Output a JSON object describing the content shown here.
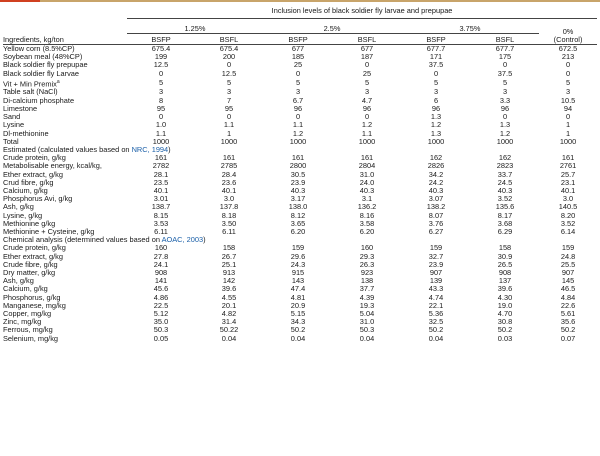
{
  "table": {
    "group_title": "Inclusion levels of black soldier fly larvae and prepupae",
    "levels": [
      "1.25%",
      "2.5%",
      "3.75%"
    ],
    "control_label_line1": "0%",
    "control_label_line2": "(Control)",
    "col_header": "Ingredients, kg/ton",
    "subcols": [
      "BSFP",
      "BSFL",
      "BSFP",
      "BSFL",
      "BSFP",
      "BSFL"
    ],
    "ingredients": [
      [
        "Yellow corn (8.5%CP)",
        "675.4",
        "675.4",
        "677",
        "677",
        "677.7",
        "677.7",
        "672.5"
      ],
      [
        "Soybean meal (48%CP)",
        "199",
        "200",
        "185",
        "187",
        "171",
        "175",
        "213"
      ],
      [
        "Black soldier fly prepupae",
        "12.5",
        "0",
        "25",
        "0",
        "37.5",
        "0",
        "0"
      ],
      [
        "Black soldier fly Larvae",
        "0",
        "12.5",
        "0",
        "25",
        "0",
        "37.5",
        "0"
      ],
      [
        "Vit + Min Premix",
        "5",
        "5",
        "5",
        "5",
        "5",
        "5",
        "5"
      ],
      [
        "Table salt (NaCl)",
        "3",
        "3",
        "3",
        "3",
        "3",
        "3",
        "3"
      ],
      [
        "Di-calcium phosphate",
        "8",
        "7",
        "6.7",
        "4.7",
        "6",
        "3.3",
        "10.5"
      ],
      [
        "Limestone",
        "95",
        "95",
        "96",
        "96",
        "96",
        "96",
        "94"
      ],
      [
        "Sand",
        "0",
        "0",
        "0",
        "0",
        "1.3",
        "0",
        "0"
      ],
      [
        "Lysine",
        "1.0",
        "1.1",
        "1.1",
        "1.2",
        "1.2",
        "1.3",
        "1"
      ],
      [
        "Dl-methionine",
        "1.1",
        "1",
        "1.2",
        "1.1",
        "1.3",
        "1.2",
        "1"
      ],
      [
        "Total",
        "1000",
        "1000",
        "1000",
        "1000",
        "1000",
        "1000",
        "1000"
      ]
    ],
    "premix_mark": "a",
    "estimated_heading_pre": "Estimated (calculated values based on ",
    "estimated_heading_link": "NRC, 1994",
    "estimated_heading_post": ")",
    "estimated": [
      [
        "Crude protein, g/kg",
        "161",
        "161",
        "161",
        "161",
        "162",
        "162",
        "161"
      ],
      [
        "Metabolisable energy, kcal/kg,",
        "2782",
        "2785",
        "2800",
        "2804",
        "2826",
        "2823",
        "2761"
      ],
      [
        "Ether extract, g/kg",
        "28.1",
        "28.4",
        "30.5",
        "31.0",
        "34.2",
        "33.7",
        "25.7"
      ],
      [
        "Crud fibre, g/kg",
        "23.5",
        "23.6",
        "23.9",
        "24.0",
        "24.2",
        "24.5",
        "23.1"
      ],
      [
        "Calcium, g/kg",
        "40.1",
        "40.1",
        "40.3",
        "40.3",
        "40.3",
        "40.3",
        "40.1"
      ],
      [
        "Phosphorus Avi, g/kg",
        "3.01",
        "3.0",
        "3.17",
        "3.1",
        "3.07",
        "3.52",
        "3.0"
      ],
      [
        "Ash, g/kg",
        "138.7",
        "137.8",
        "138.0",
        "136.2",
        "138.2",
        "135.6",
        "140.5"
      ],
      [
        "Lysine, g/kg",
        "8.15",
        "8.18",
        "8.12",
        "8.16",
        "8.07",
        "8.17",
        "8.20"
      ],
      [
        "Methionine g/kg",
        "3.53",
        "3.50",
        "3.65",
        "3.58",
        "3.76",
        "3.68",
        "3.52"
      ],
      [
        "Methionine + Cysteine, g/kg",
        "6.11",
        "6.11",
        "6.20",
        "6.20",
        "6.27",
        "6.29",
        "6.14"
      ]
    ],
    "chemical_heading_pre": "Chemical analysis (determined values based on ",
    "chemical_heading_link": "AOAC, 2003",
    "chemical_heading_post": ")",
    "chemical": [
      [
        "Crude protein, g/kg",
        "160",
        "158",
        "159",
        "160",
        "159",
        "158",
        "159"
      ],
      [
        "Ether extract, g/kg",
        "27.8",
        "26.7",
        "29.6",
        "29.3",
        "32.7",
        "30.9",
        "24.8"
      ],
      [
        "Crude fibre, g/kg",
        "24.1",
        "25.1",
        "24.3",
        "26.3",
        "23.9",
        "26.5",
        "25.5"
      ],
      [
        "Dry matter, g/kg",
        "908",
        "913",
        "915",
        "923",
        "907",
        "908",
        "907"
      ],
      [
        "Ash, g/kg",
        "141",
        "142",
        "143",
        "138",
        "139",
        "137",
        "145"
      ],
      [
        "Calcium, g/kg",
        "45.6",
        "39.6",
        "47.4",
        "37.7",
        "43.3",
        "39.6",
        "46.5"
      ],
      [
        "Phosphorus, g/kg",
        "4.86",
        "4.55",
        "4.81",
        "4.39",
        "4.74",
        "4.30",
        "4.84"
      ],
      [
        "Manganese, mg/kg",
        "22.5",
        "20.1",
        "20.9",
        "19.3",
        "22.1",
        "19.0",
        "22.6"
      ],
      [
        "Copper, mg/kg",
        "5.12",
        "4.82",
        "5.15",
        "5.04",
        "5.36",
        "4.70",
        "5.61"
      ],
      [
        "Zinc, mg/kg",
        "35.0",
        "31.4",
        "34.3",
        "31.0",
        "32.5",
        "30.8",
        "35.6"
      ],
      [
        "Ferrous, mg/kg",
        "50.3",
        "50.22",
        "50.2",
        "50.3",
        "50.2",
        "50.2",
        "50.2"
      ],
      [
        "Selenium, mg/kg",
        "0.05",
        "0.04",
        "0.04",
        "0.04",
        "0.04",
        "0.03",
        "0.07"
      ]
    ]
  }
}
